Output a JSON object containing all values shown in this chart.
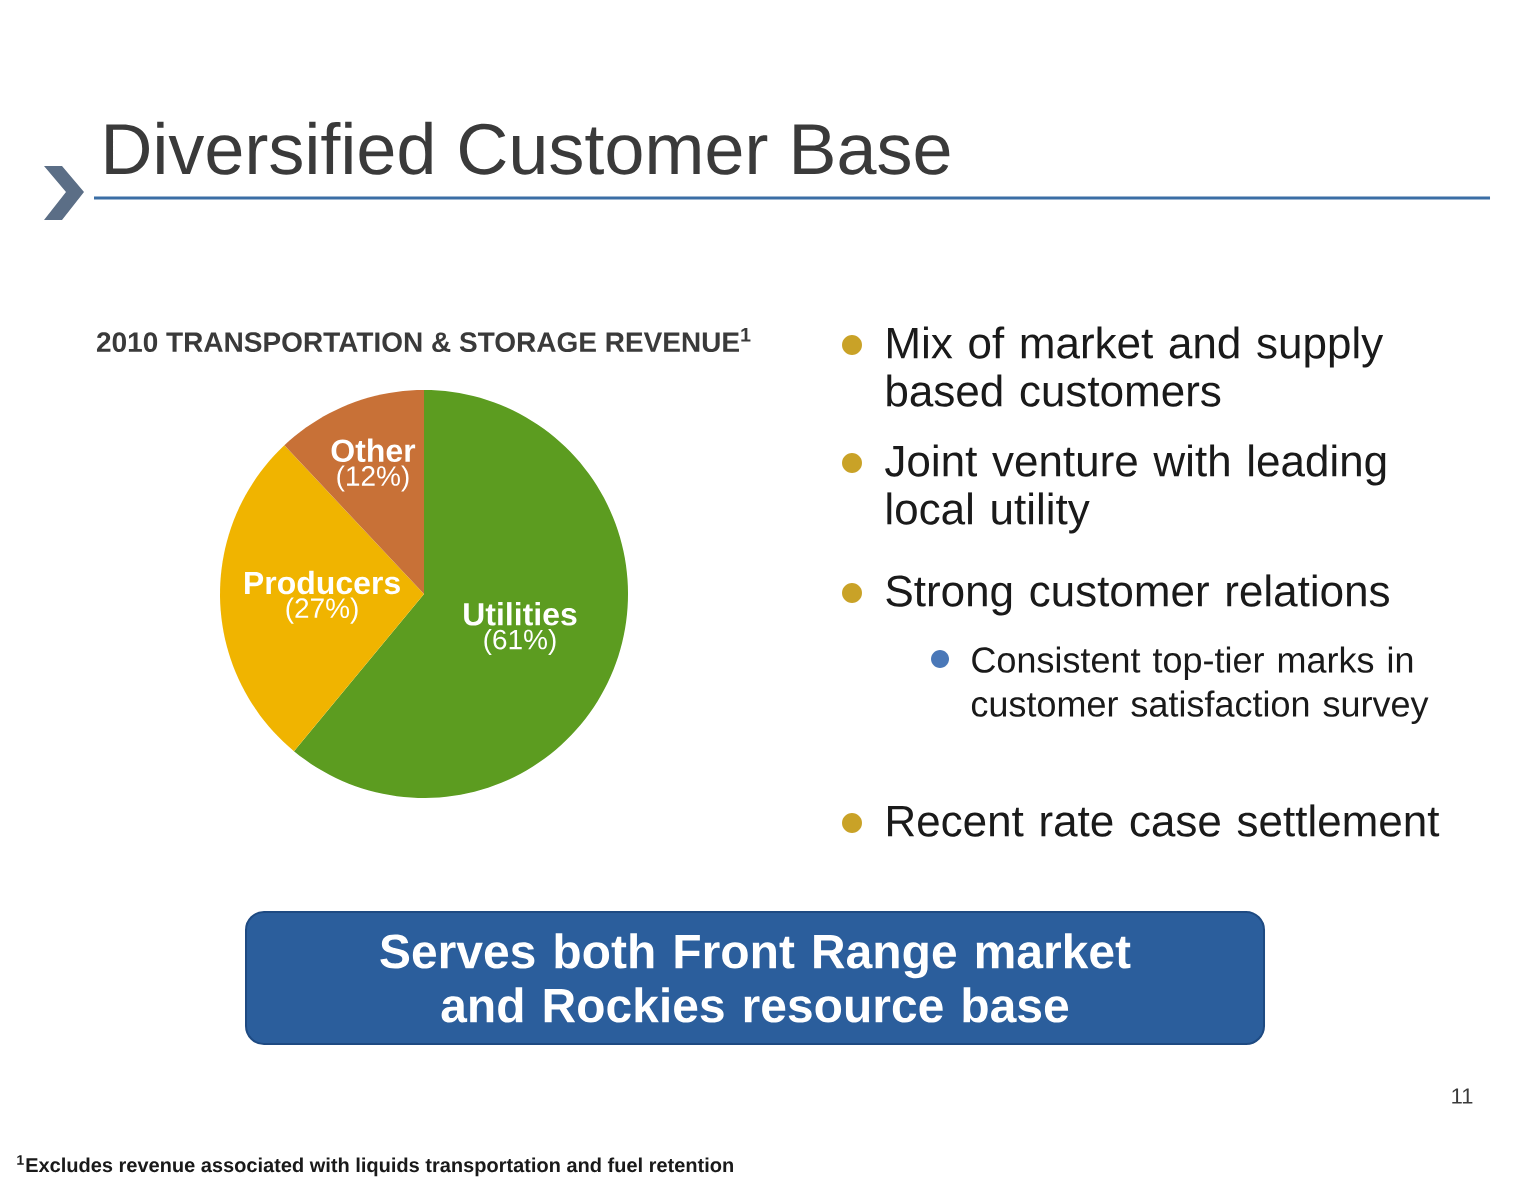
{
  "chart_data": {
    "type": "pie",
    "title": "Diversified Customer Base",
    "subtitle": "2010 TRANSPORTATION & STORAGE REVENUE$^{1}$",
    "categories": [
      "Utilities",
      "Producers",
      "Other"
    ],
    "values": [
      61,
      27,
      12
    ],
    "colors": [
      "#5c9c20",
      "#f0b400",
      "#c87137"
    ],
    "value_labels": [
      "(61%)",
      "(27%)",
      "(12%)"
    ],
    "annotations": [
      "Mix of market and supply based customers",
      "Joint venture with leading local utility",
      "Strong customer relations",
      "Consistent top-tier marks in customer satisfaction survey",
      "Recent rate case settlement",
      "Serves both Front Range market and Rockies resource base",
      "11",
      "$^{1}$Excludes revenue associated with liquids transportation and fuel retention"
    ]
  }
}
